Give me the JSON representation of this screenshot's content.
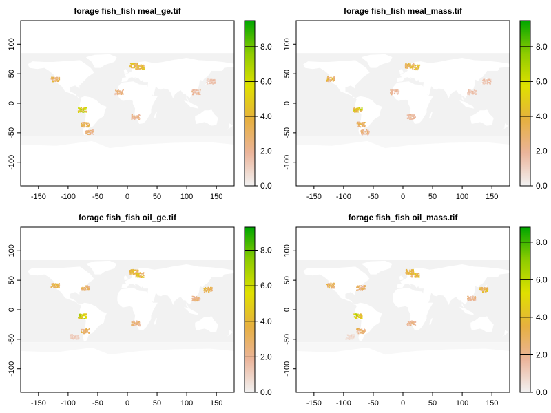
{
  "chart_data": [
    {
      "type": "heatmap",
      "title": "forage fish_fish meal_ge.tif",
      "x_ticks": [
        -150,
        -100,
        -50,
        0,
        50,
        100,
        150
      ],
      "y_ticks": [
        -100,
        -50,
        0,
        50,
        100
      ],
      "xlim": [
        -180,
        180
      ],
      "ylim": [
        -140,
        140
      ],
      "colorbar_ticks": [
        "0.0",
        "2.0",
        "4.0",
        "6.0",
        "8.0"
      ],
      "colorbar_range": [
        0,
        9.5
      ],
      "colorbar_stops": [
        "#f2f2f2",
        "#ebb49a",
        "#e6b040",
        "#e0e000",
        "#8fcc00",
        "#00a600"
      ],
      "hotspots": [
        {
          "region": "North Sea / Baltic",
          "lon": 20,
          "lat": 62,
          "value": 6.0
        },
        {
          "region": "Norwegian coast",
          "lon": 10,
          "lat": 65,
          "value": 5.5
        },
        {
          "region": "Peru coast",
          "lon": -77,
          "lat": -10,
          "value": 7.5
        },
        {
          "region": "Chile coast",
          "lon": -72,
          "lat": -35,
          "value": 4.5
        },
        {
          "region": "US west coast",
          "lon": -123,
          "lat": 42,
          "value": 4.5
        },
        {
          "region": "Patagonia shelf",
          "lon": -65,
          "lat": -48,
          "value": 3.0
        },
        {
          "region": "NW Africa coast",
          "lon": -15,
          "lat": 20,
          "value": 3.0
        },
        {
          "region": "SW Africa coast",
          "lon": 13,
          "lat": -22,
          "value": 3.0
        },
        {
          "region": "SE Asia coast",
          "lon": 115,
          "lat": 20,
          "value": 2.5
        },
        {
          "region": "Japan coast",
          "lon": 140,
          "lat": 38,
          "value": 2.0
        }
      ]
    },
    {
      "type": "heatmap",
      "title": "forage fish_fish meal_mass.tif",
      "x_ticks": [
        -150,
        -100,
        -50,
        0,
        50,
        100,
        150
      ],
      "y_ticks": [
        -100,
        -50,
        0,
        50,
        100
      ],
      "xlim": [
        -180,
        180
      ],
      "ylim": [
        -140,
        140
      ],
      "colorbar_ticks": [
        "0.0",
        "2.0",
        "4.0",
        "6.0",
        "8.0"
      ],
      "colorbar_range": [
        0,
        9.5
      ],
      "colorbar_stops": [
        "#f2f2f2",
        "#ebb49a",
        "#e6b040",
        "#e0e000",
        "#8fcc00",
        "#00a600"
      ],
      "hotspots": [
        {
          "region": "North Sea / Baltic",
          "lon": 20,
          "lat": 62,
          "value": 5.5
        },
        {
          "region": "Norwegian coast",
          "lon": 10,
          "lat": 65,
          "value": 5.0
        },
        {
          "region": "Peru coast",
          "lon": -77,
          "lat": -10,
          "value": 7.0
        },
        {
          "region": "Chile coast",
          "lon": -72,
          "lat": -35,
          "value": 4.5
        },
        {
          "region": "US west coast",
          "lon": -123,
          "lat": 42,
          "value": 4.5
        },
        {
          "region": "Patagonia shelf",
          "lon": -65,
          "lat": -48,
          "value": 3.0
        },
        {
          "region": "NW Africa coast",
          "lon": -15,
          "lat": 20,
          "value": 2.5
        },
        {
          "region": "SW Africa coast",
          "lon": 13,
          "lat": -22,
          "value": 2.5
        },
        {
          "region": "SE Asia coast",
          "lon": 115,
          "lat": 20,
          "value": 2.0
        },
        {
          "region": "Japan coast",
          "lon": 140,
          "lat": 38,
          "value": 2.0
        }
      ]
    },
    {
      "type": "heatmap",
      "title": "forage fish_fish oil_ge.tif",
      "x_ticks": [
        -150,
        -100,
        -50,
        0,
        50,
        100,
        150
      ],
      "y_ticks": [
        -100,
        -50,
        0,
        50,
        100
      ],
      "xlim": [
        -180,
        180
      ],
      "ylim": [
        -140,
        140
      ],
      "colorbar_ticks": [
        "0.0",
        "2.0",
        "4.0",
        "6.0",
        "8.0"
      ],
      "colorbar_range": [
        0,
        9.3
      ],
      "colorbar_stops": [
        "#f2f2f2",
        "#ebb49a",
        "#e6b040",
        "#e0e000",
        "#8fcc00",
        "#00a600"
      ],
      "hotspots": [
        {
          "region": "North Sea / Baltic",
          "lon": 20,
          "lat": 60,
          "value": 5.5
        },
        {
          "region": "Norwegian coast",
          "lon": 10,
          "lat": 65,
          "value": 5.0
        },
        {
          "region": "Peru coast",
          "lon": -77,
          "lat": -10,
          "value": 7.5
        },
        {
          "region": "Chile coast",
          "lon": -72,
          "lat": -35,
          "value": 4.0
        },
        {
          "region": "US west coast",
          "lon": -123,
          "lat": 42,
          "value": 4.5
        },
        {
          "region": "US east coast",
          "lon": -72,
          "lat": 38,
          "value": 4.0
        },
        {
          "region": "Japan / Korea",
          "lon": 135,
          "lat": 35,
          "value": 4.5
        },
        {
          "region": "SE Asia coast",
          "lon": 115,
          "lat": 20,
          "value": 3.0
        },
        {
          "region": "South Pacific",
          "lon": -90,
          "lat": -45,
          "value": 1.5
        },
        {
          "region": "SW Africa coast",
          "lon": 13,
          "lat": -22,
          "value": 3.0
        }
      ]
    },
    {
      "type": "heatmap",
      "title": "forage fish_fish oil_mass.tif",
      "x_ticks": [
        -150,
        -100,
        -50,
        0,
        50,
        100,
        150
      ],
      "y_ticks": [
        -100,
        -50,
        0,
        50,
        100
      ],
      "xlim": [
        -180,
        180
      ],
      "ylim": [
        -140,
        140
      ],
      "colorbar_ticks": [
        "0.0",
        "2.0",
        "4.0",
        "6.0",
        "8.0"
      ],
      "colorbar_range": [
        0,
        8.8
      ],
      "colorbar_stops": [
        "#f2f2f2",
        "#ebb49a",
        "#e6b040",
        "#e0e000",
        "#8fcc00",
        "#00a600"
      ],
      "hotspots": [
        {
          "region": "North Sea / Baltic",
          "lon": 20,
          "lat": 60,
          "value": 5.0
        },
        {
          "region": "Norwegian coast",
          "lon": 10,
          "lat": 65,
          "value": 4.5
        },
        {
          "region": "Peru coast",
          "lon": -77,
          "lat": -10,
          "value": 7.0
        },
        {
          "region": "Chile coast",
          "lon": -72,
          "lat": -35,
          "value": 3.5
        },
        {
          "region": "US west coast",
          "lon": -123,
          "lat": 42,
          "value": 4.0
        },
        {
          "region": "US east coast",
          "lon": -72,
          "lat": 38,
          "value": 3.5
        },
        {
          "region": "Japan / Korea",
          "lon": 135,
          "lat": 35,
          "value": 4.5
        },
        {
          "region": "SE Asia coast",
          "lon": 115,
          "lat": 20,
          "value": 3.0
        },
        {
          "region": "South Pacific",
          "lon": -90,
          "lat": -45,
          "value": 1.0
        },
        {
          "region": "SW Africa coast",
          "lon": 13,
          "lat": -22,
          "value": 2.5
        }
      ]
    }
  ],
  "colors": {
    "ocean_background": "#f2f2f2",
    "land": "#ffffff",
    "axis": "#000000"
  }
}
